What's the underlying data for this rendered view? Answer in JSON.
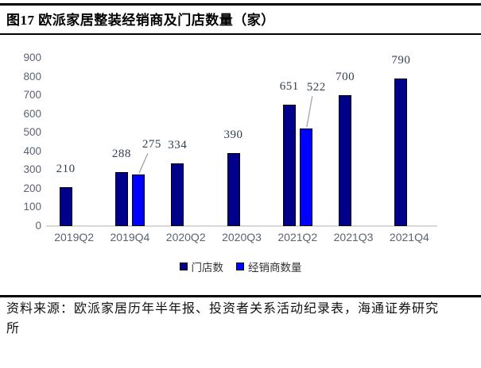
{
  "title": "图17 欧派家居整装经销商及门店数量（家）",
  "source": "资料来源：欧派家居历年半年报、投资者关系活动纪录表，海通证券研究所",
  "colors": {
    "store_bar": "#00008B",
    "dealer_bar": "#0000FF",
    "bar_border": "#000000",
    "axis_label": "#5A6372",
    "data_label": "#333F50",
    "leader_line": "#A6A6A6",
    "baseline": "#D9D9D9",
    "rule": "#000000"
  },
  "chart_data": {
    "type": "bar",
    "title": "图17 欧派家居整装经销商及门店数量（家）",
    "categories": [
      "2019Q2",
      "2019Q4",
      "2020Q2",
      "2020Q3",
      "2021Q2",
      "2021Q3",
      "2021Q4"
    ],
    "series": [
      {
        "name": "门店数",
        "color": "#00008B",
        "values": [
          210,
          288,
          334,
          390,
          651,
          700,
          790
        ]
      },
      {
        "name": "经销商数量",
        "color": "#0000FF",
        "values": [
          null,
          275,
          null,
          null,
          522,
          null,
          null
        ],
        "label_offsets": [
          null,
          {
            "dx": 17,
            "dy": -15
          },
          null,
          null,
          {
            "dx": 13,
            "dy": -29
          },
          null,
          null
        ]
      }
    ],
    "xlabel": "",
    "ylabel": "",
    "yticks": [
      0,
      100,
      200,
      300,
      400,
      500,
      600,
      700,
      800,
      900
    ],
    "ylim": [
      0,
      900
    ],
    "grid": false,
    "data_labels": true,
    "legend_position": "bottom"
  }
}
